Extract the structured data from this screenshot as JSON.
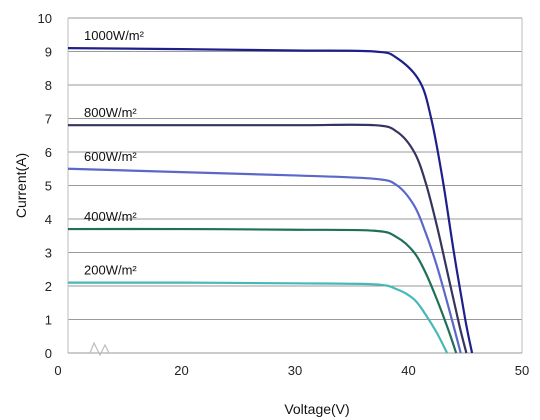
{
  "chart_data": {
    "type": "line",
    "title": "",
    "xlabel": "Voltage(V)",
    "ylabel": "Current(A)",
    "xlim": [
      10,
      50
    ],
    "ylim": [
      0,
      10
    ],
    "x_axis_break": true,
    "grid": "horizontal",
    "xticks": [
      "0",
      "20",
      "30",
      "40",
      "50"
    ],
    "yticks": [
      "0",
      "1",
      "2",
      "3",
      "4",
      "5",
      "6",
      "7",
      "8",
      "9",
      "10"
    ],
    "series": [
      {
        "name": "1000W/m²",
        "color": "#1f1f8c",
        "x": [
          10,
          20,
          30,
          37,
          39,
          41,
          42,
          43,
          44,
          45,
          45.6
        ],
        "y": [
          9.1,
          9.07,
          9.03,
          9.0,
          8.8,
          8.1,
          7.0,
          5.2,
          3.0,
          1.0,
          0
        ]
      },
      {
        "name": "800W/m²",
        "color": "#34345e",
        "x": [
          10,
          20,
          30,
          37,
          39,
          40.5,
          41.5,
          42.5,
          43.5,
          44.5,
          45.1
        ],
        "y": [
          6.8,
          6.8,
          6.8,
          6.8,
          6.6,
          6.0,
          5.1,
          3.8,
          2.3,
          0.8,
          0
        ]
      },
      {
        "name": "600W/m²",
        "color": "#5b68c9",
        "x": [
          10,
          20,
          30,
          37,
          39,
          40.5,
          41.5,
          42.5,
          43.5,
          44.6
        ],
        "y": [
          5.5,
          5.4,
          5.3,
          5.2,
          5.0,
          4.4,
          3.6,
          2.6,
          1.4,
          0
        ]
      },
      {
        "name": "400W/m²",
        "color": "#1f6f5a",
        "x": [
          10,
          20,
          30,
          37,
          39,
          40.5,
          41.5,
          42.5,
          43.5,
          44.2
        ],
        "y": [
          3.7,
          3.7,
          3.68,
          3.65,
          3.45,
          3.0,
          2.4,
          1.6,
          0.7,
          0
        ]
      },
      {
        "name": "200W/m²",
        "color": "#47b8b8",
        "x": [
          10,
          20,
          30,
          37,
          39,
          40.5,
          41.5,
          42.5,
          43.4
        ],
        "y": [
          2.1,
          2.1,
          2.08,
          2.05,
          1.9,
          1.6,
          1.15,
          0.6,
          0
        ]
      }
    ]
  }
}
